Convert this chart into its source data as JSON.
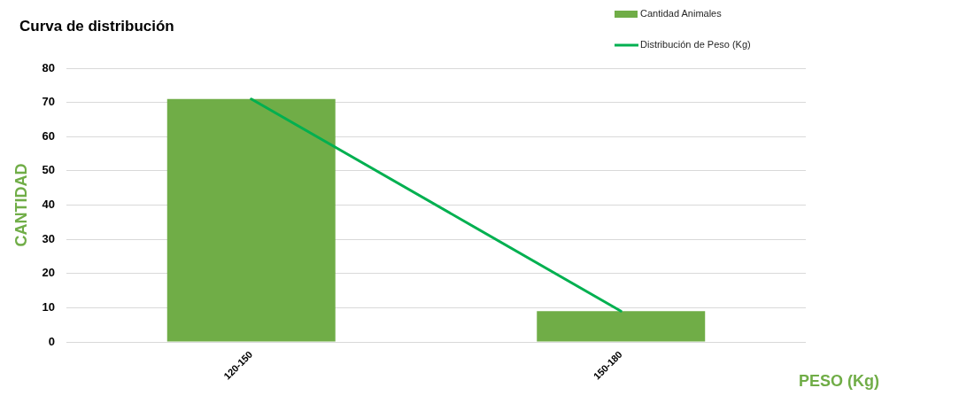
{
  "chart_data": {
    "type": "bar",
    "title": "Curva de distribución",
    "xlabel": "PESO (Kg)",
    "ylabel": "CANTIDAD",
    "categories": [
      "120-150",
      "150-180"
    ],
    "series": [
      {
        "name": "Cantidad Animales",
        "color": "#70ad47",
        "values": [
          71,
          9
        ]
      },
      {
        "name": "Distribución de Peso (Kg)",
        "type": "line",
        "color": "#00b050",
        "values": [
          71,
          9
        ]
      }
    ],
    "ylim": [
      0,
      80
    ],
    "yticks": [
      0,
      10,
      20,
      30,
      40,
      50,
      60,
      70,
      80
    ],
    "grid": "y",
    "legend": "top right",
    "marker": "none"
  }
}
